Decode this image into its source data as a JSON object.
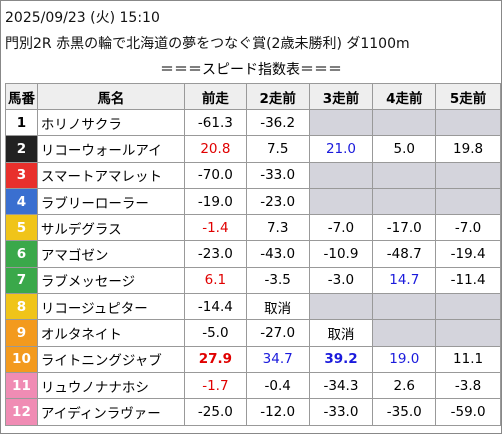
{
  "header": {
    "datetime": "2025/09/23 (火) 15:10",
    "race": "門別2R 赤黒の輪で北海道の夢をつなぐ賞(2歳未勝利) ダ1100m"
  },
  "subtitle": "＝＝＝スピード指数表＝＝＝",
  "table": {
    "columns": [
      "馬番",
      "馬名",
      "前走",
      "2走前",
      "3走前",
      "4走前",
      "5走前"
    ],
    "rows": [
      {
        "number": "1",
        "frame_color": "#ffffff",
        "number_color": "#000000",
        "name": "ホリノサクラ",
        "cells": [
          {
            "text": "-61.3"
          },
          {
            "text": "-36.2"
          },
          null,
          null,
          null
        ]
      },
      {
        "number": "2",
        "frame_color": "#222222",
        "number_color": "#ffffff",
        "name": "リコーウォールアイ",
        "cells": [
          {
            "text": "20.8",
            "color": "#e00000"
          },
          {
            "text": "7.5"
          },
          {
            "text": "21.0",
            "color": "#1a1adc"
          },
          {
            "text": "5.0"
          },
          {
            "text": "19.8"
          }
        ]
      },
      {
        "number": "3",
        "frame_color": "#e8302c",
        "number_color": "#ffffff",
        "name": "スマートアマレット",
        "cells": [
          {
            "text": "-70.0"
          },
          {
            "text": "-33.0"
          },
          null,
          null,
          null
        ]
      },
      {
        "number": "4",
        "frame_color": "#3a6fd0",
        "number_color": "#ffffff",
        "name": "ラブリーローラー",
        "cells": [
          {
            "text": "-19.0"
          },
          {
            "text": "-23.0"
          },
          null,
          null,
          null
        ]
      },
      {
        "number": "5",
        "frame_color": "#f0c419",
        "number_color": "#ffffff",
        "name": "サルデグラス",
        "cells": [
          {
            "text": "-1.4",
            "color": "#e00000"
          },
          {
            "text": "7.3"
          },
          {
            "text": "-7.0"
          },
          {
            "text": "-17.0"
          },
          {
            "text": "-7.0"
          }
        ]
      },
      {
        "number": "6",
        "frame_color": "#3aa84a",
        "number_color": "#ffffff",
        "name": "アマゴゼン",
        "cells": [
          {
            "text": "-23.0"
          },
          {
            "text": "-43.0"
          },
          {
            "text": "-10.9"
          },
          {
            "text": "-48.7"
          },
          {
            "text": "-19.4"
          }
        ]
      },
      {
        "number": "7",
        "frame_color": "#3aa84a",
        "number_color": "#ffffff",
        "name": "ラブメッセージ",
        "cells": [
          {
            "text": "6.1",
            "color": "#e00000"
          },
          {
            "text": "-3.5"
          },
          {
            "text": "-3.0"
          },
          {
            "text": "14.7",
            "color": "#1a1adc"
          },
          {
            "text": "-11.4"
          }
        ]
      },
      {
        "number": "8",
        "frame_color": "#f0c419",
        "number_color": "#ffffff",
        "name": "リコージュピター",
        "cells": [
          {
            "text": "-14.4"
          },
          {
            "text": "取消"
          },
          null,
          null,
          null
        ]
      },
      {
        "number": "9",
        "frame_color": "#f39a1e",
        "number_color": "#ffffff",
        "name": "オルタネイト",
        "cells": [
          {
            "text": "-5.0"
          },
          {
            "text": "-27.0"
          },
          {
            "text": "取消"
          },
          null,
          null
        ]
      },
      {
        "number": "10",
        "frame_color": "#f39a1e",
        "number_color": "#ffffff",
        "name": "ライトニングジャブ",
        "cells": [
          {
            "text": "27.9",
            "color": "#e00000",
            "bold": true
          },
          {
            "text": "34.7",
            "color": "#1a1adc"
          },
          {
            "text": "39.2",
            "color": "#1a1adc",
            "bold": true
          },
          {
            "text": "19.0",
            "color": "#1a1adc"
          },
          {
            "text": "11.1"
          }
        ]
      },
      {
        "number": "11",
        "frame_color": "#f08cb4",
        "number_color": "#ffffff",
        "name": "リュウノナナホシ",
        "cells": [
          {
            "text": "-1.7",
            "color": "#e00000"
          },
          {
            "text": "-0.4"
          },
          {
            "text": "-34.3"
          },
          {
            "text": "2.6"
          },
          {
            "text": "-3.8"
          }
        ]
      },
      {
        "number": "12",
        "frame_color": "#f08cb4",
        "number_color": "#ffffff",
        "name": "アイディンラヴァー",
        "cells": [
          {
            "text": "-25.0"
          },
          {
            "text": "-12.0"
          },
          {
            "text": "-33.0"
          },
          {
            "text": "-35.0"
          },
          {
            "text": "-59.0"
          }
        ]
      }
    ]
  }
}
